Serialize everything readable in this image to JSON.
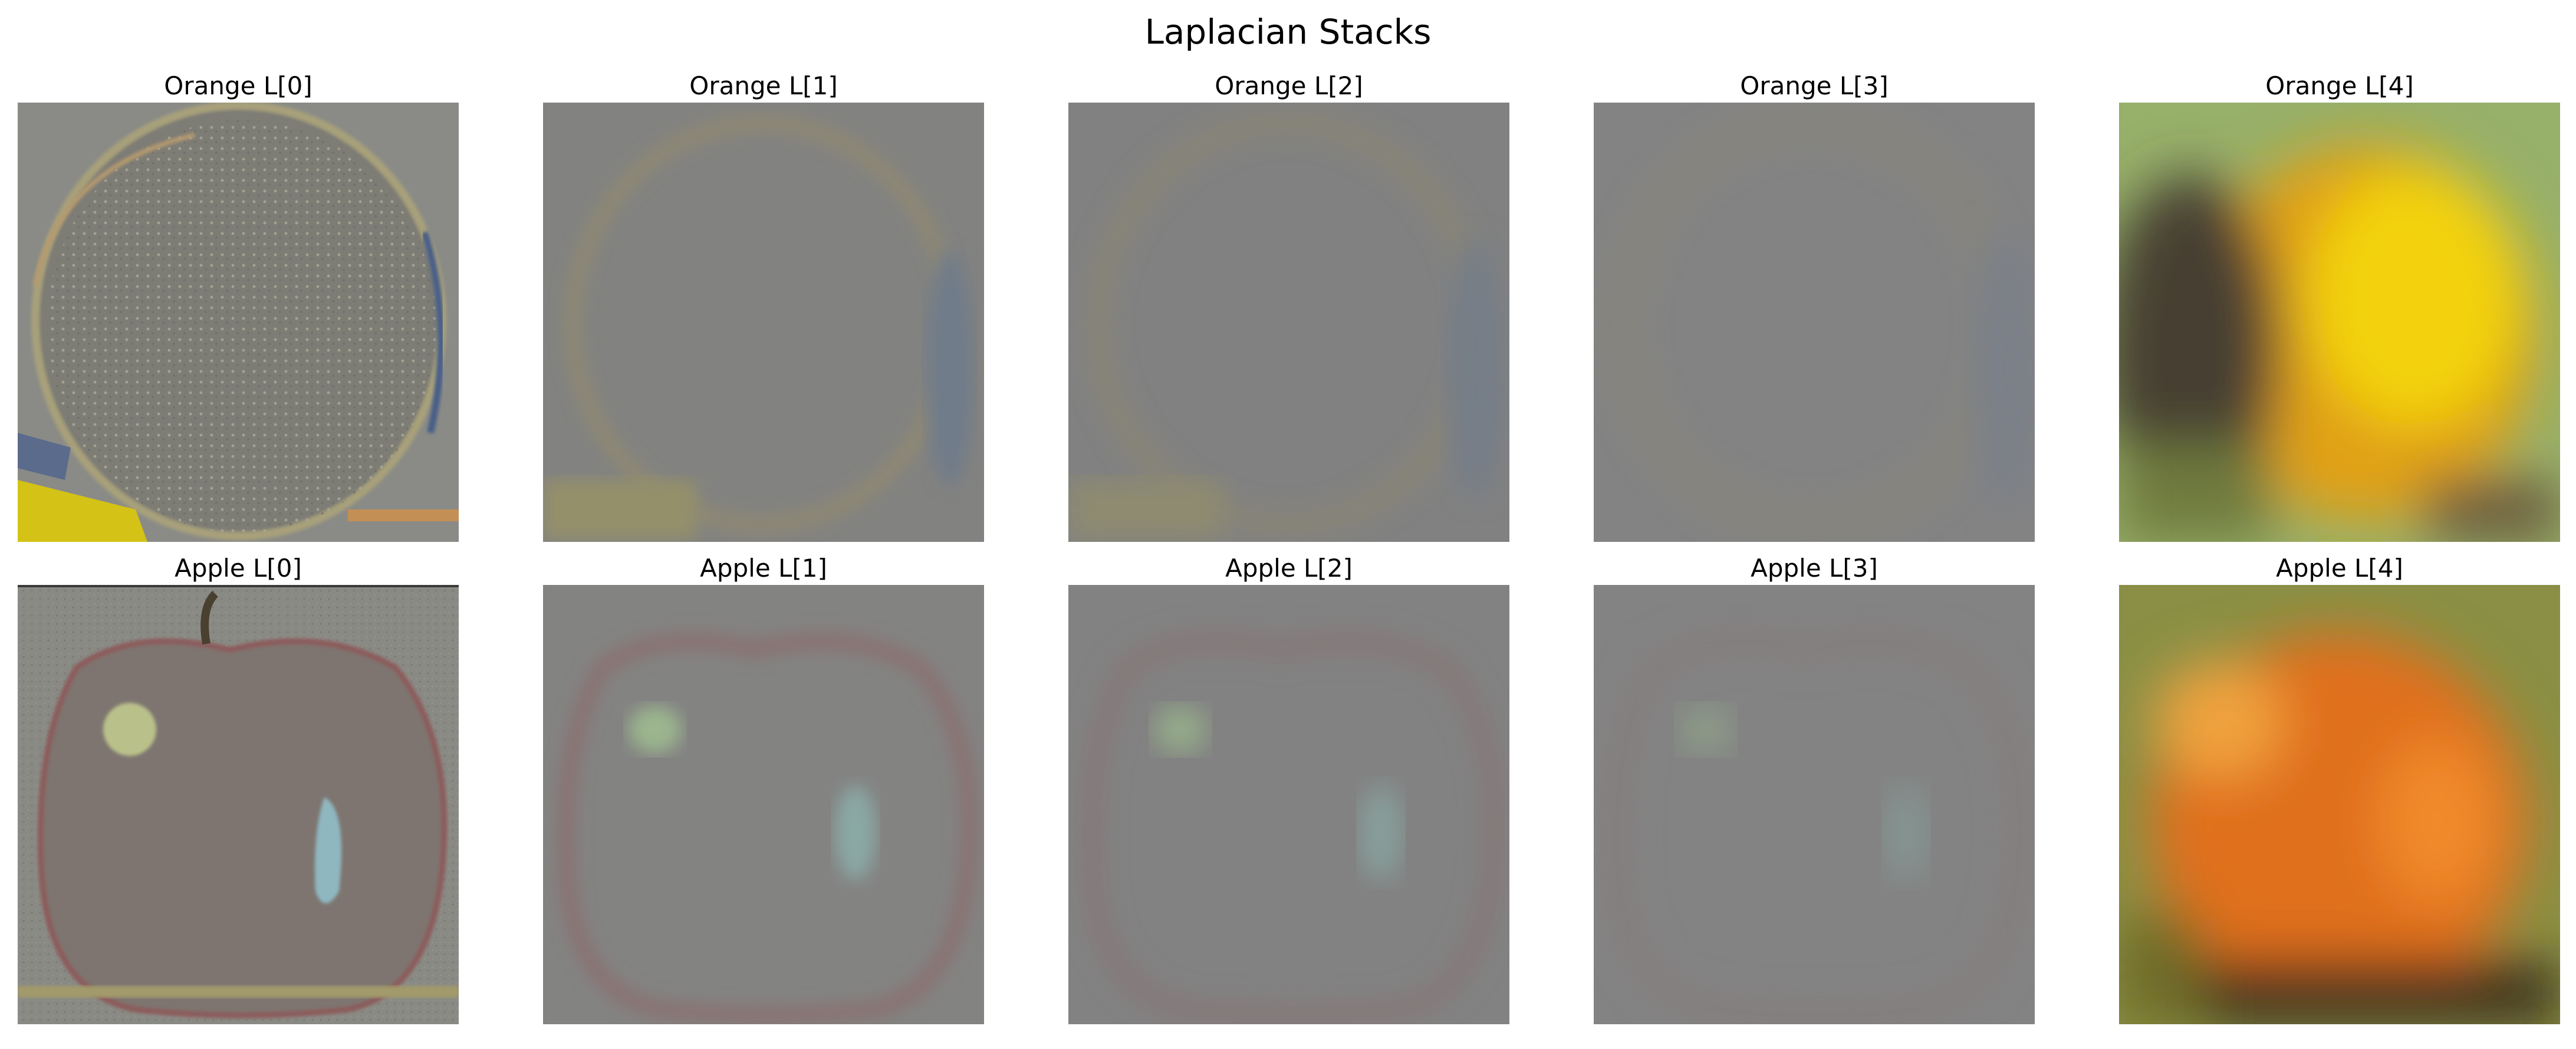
{
  "figure": {
    "title": "Laplacian Stacks"
  },
  "rows": [
    {
      "name": "Orange",
      "panels": [
        {
          "title": "Orange L[0]",
          "fruit": "orange",
          "kind": "detail",
          "level": 0
        },
        {
          "title": "Orange L[1]",
          "fruit": "orange",
          "kind": "detail",
          "level": 1
        },
        {
          "title": "Orange L[2]",
          "fruit": "orange",
          "kind": "detail",
          "level": 2
        },
        {
          "title": "Orange L[3]",
          "fruit": "orange",
          "kind": "detail",
          "level": 3
        },
        {
          "title": "Orange L[4]",
          "fruit": "orange",
          "kind": "lowpass",
          "level": 4
        }
      ]
    },
    {
      "name": "Apple",
      "panels": [
        {
          "title": "Apple L[0]",
          "fruit": "apple",
          "kind": "detail",
          "level": 0
        },
        {
          "title": "Apple L[1]",
          "fruit": "apple",
          "kind": "detail",
          "level": 1
        },
        {
          "title": "Apple L[2]",
          "fruit": "apple",
          "kind": "detail",
          "level": 2
        },
        {
          "title": "Apple L[3]",
          "fruit": "apple",
          "kind": "detail",
          "level": 3
        },
        {
          "title": "Apple L[4]",
          "fruit": "apple",
          "kind": "lowpass",
          "level": 4
        }
      ]
    }
  ],
  "colors": {
    "background": "#ffffff",
    "detail_gray": "#828282",
    "orange_yellow": "#f3d20a",
    "orange_amber": "#e0a019",
    "orange_green_bg": "#97b06a",
    "orange_dark_left": "#4a4236",
    "apple_orange": "#e0701f",
    "apple_highlight": "#f0a23c",
    "apple_olive_bg": "#8a8f45",
    "apple_dark_base": "#3a2e1f"
  }
}
